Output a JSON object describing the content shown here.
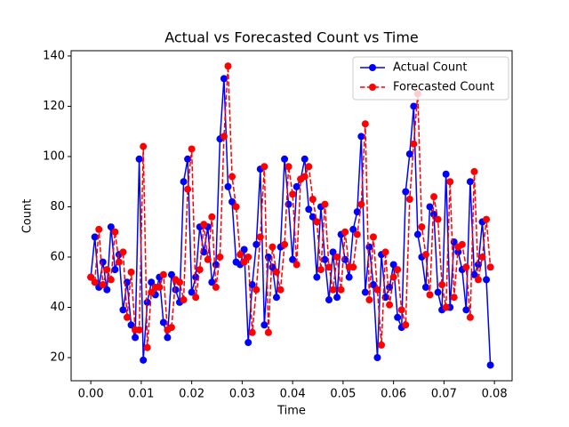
{
  "chart_data": {
    "type": "line",
    "title": "Actual vs Forecasted Count vs Time",
    "x_label": "Time",
    "y_label": "Count",
    "x": [
      0,
      0.0008,
      0.0016,
      0.0024,
      0.0032,
      0.004,
      0.0048,
      0.0056,
      0.0064,
      0.0072,
      0.008,
      0.0088,
      0.0096,
      0.0104,
      0.0112,
      0.012,
      0.0128,
      0.0136,
      0.0144,
      0.0152,
      0.016,
      0.0168,
      0.0176,
      0.0184,
      0.0192,
      0.02,
      0.0208,
      0.0216,
      0.0224,
      0.0232,
      0.024,
      0.0248,
      0.0256,
      0.0264,
      0.0272,
      0.028,
      0.0288,
      0.0296,
      0.0304,
      0.0312,
      0.032,
      0.0328,
      0.0336,
      0.0344,
      0.0352,
      0.036,
      0.0368,
      0.0376,
      0.0384,
      0.0392,
      0.04,
      0.0408,
      0.0416,
      0.0424,
      0.0432,
      0.044,
      0.0448,
      0.0456,
      0.0464,
      0.0472,
      0.048,
      0.0488,
      0.0496,
      0.0504,
      0.0512,
      0.052,
      0.0528,
      0.0536,
      0.0544,
      0.0552,
      0.056,
      0.0568,
      0.0576,
      0.0584,
      0.0592,
      0.06,
      0.0608,
      0.0616,
      0.0624,
      0.0632,
      0.064,
      0.0648,
      0.0656,
      0.0664,
      0.0672,
      0.068,
      0.0688,
      0.0696,
      0.0704,
      0.0712,
      0.072,
      0.0728,
      0.0736,
      0.0744,
      0.0752,
      0.076,
      0.0768,
      0.0776,
      0.0784,
      0.0792
    ],
    "series": [
      {
        "name": "Actual Count",
        "color": "#0000ff",
        "dashed": false,
        "values": [
          52,
          68,
          48,
          58,
          47,
          72,
          55,
          61,
          39,
          50,
          33,
          28,
          99,
          19,
          42,
          50,
          45,
          52,
          34,
          28,
          53,
          47,
          42,
          90,
          99,
          46,
          52,
          72,
          62,
          72,
          50,
          57,
          107,
          131,
          88,
          82,
          58,
          57,
          63,
          26,
          49,
          65,
          95,
          33,
          60,
          56,
          44,
          64,
          99,
          81,
          59,
          88,
          91,
          99,
          79,
          76,
          52,
          80,
          59,
          43,
          62,
          44,
          69,
          59,
          52,
          71,
          78,
          108,
          46,
          64,
          49,
          20,
          61,
          44,
          48,
          57,
          36,
          32,
          86,
          101,
          120,
          69,
          60,
          48,
          80,
          77,
          46,
          39,
          93,
          40,
          66,
          62,
          55,
          39,
          90,
          53,
          57,
          74,
          51,
          17
        ]
      },
      {
        "name": "Forecasted Count",
        "color": "#ff0000",
        "dashed": true,
        "values": [
          52,
          50,
          71,
          49,
          55,
          51,
          70,
          58,
          62,
          36,
          54,
          31,
          31,
          104,
          24,
          46,
          48,
          48,
          53,
          31,
          32,
          51,
          50,
          43,
          87,
          103,
          44,
          55,
          73,
          59,
          76,
          48,
          60,
          108,
          136,
          92,
          80,
          61,
          58,
          60,
          30,
          47,
          68,
          96,
          30,
          64,
          54,
          47,
          65,
          96,
          85,
          57,
          91,
          92,
          96,
          83,
          74,
          55,
          81,
          56,
          47,
          60,
          47,
          70,
          56,
          56,
          69,
          81,
          113,
          43,
          68,
          47,
          25,
          62,
          41,
          52,
          55,
          39,
          33,
          83,
          105,
          125,
          72,
          61,
          45,
          84,
          75,
          49,
          40,
          90,
          44,
          64,
          65,
          56,
          36,
          94,
          51,
          60,
          75,
          56
        ]
      }
    ],
    "xlim": [
      -0.0039,
      0.0835
    ],
    "ylim": [
      10.8,
      142.1
    ],
    "xticks": [
      {
        "value": 0,
        "label": "0.00"
      },
      {
        "value": 0.01,
        "label": "0.01"
      },
      {
        "value": 0.02,
        "label": "0.02"
      },
      {
        "value": 0.03,
        "label": "0.03"
      },
      {
        "value": 0.04,
        "label": "0.04"
      },
      {
        "value": 0.05,
        "label": "0.05"
      },
      {
        "value": 0.06,
        "label": "0.06"
      },
      {
        "value": 0.07,
        "label": "0.07"
      },
      {
        "value": 0.08,
        "label": "0.08"
      }
    ],
    "yticks": [
      20,
      40,
      60,
      80,
      100,
      120,
      140
    ],
    "legend": "upper right"
  }
}
